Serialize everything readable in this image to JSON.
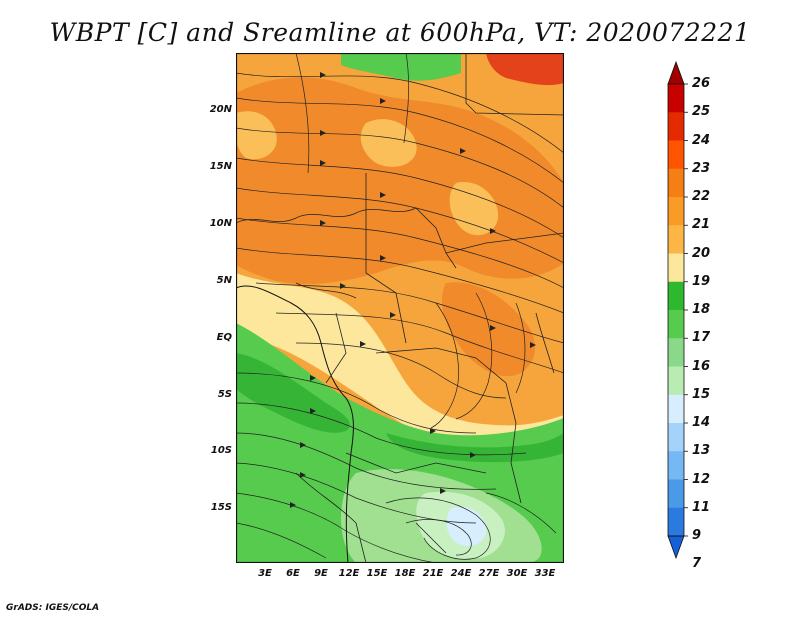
{
  "title": "WBPT [C] and Sreamline at 600hPa, VT: 2020072221",
  "credit": "GrADS: IGES/COLA",
  "y_ticks": [
    "20N",
    "15N",
    "10N",
    "5N",
    "EQ",
    "5S",
    "10S",
    "15S"
  ],
  "x_ticks": [
    "3E",
    "6E",
    "9E",
    "12E",
    "15E",
    "18E",
    "21E",
    "24E",
    "27E",
    "30E",
    "33E"
  ],
  "colorbar": {
    "labels": [
      "26",
      "25",
      "24",
      "23",
      "22",
      "21",
      "20",
      "19",
      "18",
      "17",
      "16",
      "15",
      "14",
      "13",
      "12",
      "11",
      "9",
      "7"
    ],
    "colors": [
      "#a00000",
      "#c80000",
      "#e62a00",
      "#ff5500",
      "#f57f14",
      "#f99b25",
      "#fbb645",
      "#fde79c",
      "#2db82d",
      "#56cb4e",
      "#8ad889",
      "#b8ecb2",
      "#d6eefe",
      "#a5d2fb",
      "#75b8f4",
      "#4a9ae8",
      "#2a7ae0",
      "#1560d8"
    ]
  },
  "palette": {
    "orange_dark": "#f08a2a",
    "orange": "#f6a53c",
    "light_orange": "#fbbf5a",
    "yellow": "#fde79c",
    "green_dark": "#36b436",
    "green": "#5fce59",
    "light_green": "#a0e090",
    "pale_green": "#c9f0c0",
    "pale_blue": "#d6eefe",
    "red": "#e3421b"
  }
}
